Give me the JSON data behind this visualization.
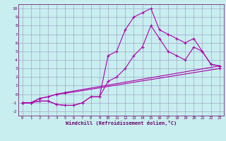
{
  "xlabel": "Windchill (Refroidissement éolien,°C)",
  "bg_color": "#c8eef0",
  "line_color": "#aa00aa",
  "grid_color": "#9999bb",
  "font_color": "#660066",
  "xlim": [
    -0.5,
    23.5
  ],
  "ylim": [
    -2.5,
    10.5
  ],
  "xticks": [
    0,
    1,
    2,
    3,
    4,
    5,
    6,
    7,
    8,
    9,
    10,
    11,
    12,
    13,
    14,
    15,
    16,
    17,
    18,
    19,
    20,
    21,
    22,
    23
  ],
  "yticks": [
    -2,
    -1,
    0,
    1,
    2,
    3,
    4,
    5,
    6,
    7,
    8,
    9,
    10
  ],
  "line1_x": [
    0,
    1,
    2,
    3,
    4,
    5,
    6,
    7,
    8,
    9,
    10,
    11,
    12,
    13,
    14,
    15,
    16,
    17,
    18,
    19,
    20,
    21,
    22,
    23
  ],
  "line1_y": [
    -1.0,
    -1.0,
    -0.8,
    -0.8,
    -1.2,
    -1.3,
    -1.3,
    -1.0,
    -0.3,
    -0.3,
    4.5,
    5.0,
    7.5,
    9.0,
    9.5,
    10.0,
    7.5,
    7.0,
    6.5,
    6.0,
    6.5,
    5.0,
    3.5,
    3.3
  ],
  "line2_x": [
    0,
    1,
    2,
    3,
    4,
    5,
    6,
    7,
    8,
    9,
    10,
    11,
    12,
    13,
    14,
    15,
    16,
    17,
    18,
    19,
    20,
    21,
    22,
    23
  ],
  "line2_y": [
    -1.0,
    -1.0,
    -0.8,
    -0.8,
    -1.2,
    -1.3,
    -1.3,
    -1.0,
    -0.3,
    -0.3,
    1.5,
    2.0,
    3.0,
    4.5,
    5.5,
    8.0,
    6.5,
    5.0,
    4.5,
    4.0,
    5.5,
    5.0,
    3.5,
    3.3
  ],
  "line3_x": [
    0,
    1,
    2,
    3,
    4,
    5,
    23
  ],
  "line3_y": [
    -1.0,
    -1.0,
    -0.5,
    -0.3,
    0.0,
    0.2,
    3.3
  ],
  "line4_x": [
    0,
    1,
    2,
    3,
    4,
    5,
    23
  ],
  "line4_y": [
    -1.0,
    -1.0,
    -0.5,
    -0.3,
    0.0,
    0.1,
    3.0
  ],
  "marker_size": 3,
  "line_width": 0.8
}
